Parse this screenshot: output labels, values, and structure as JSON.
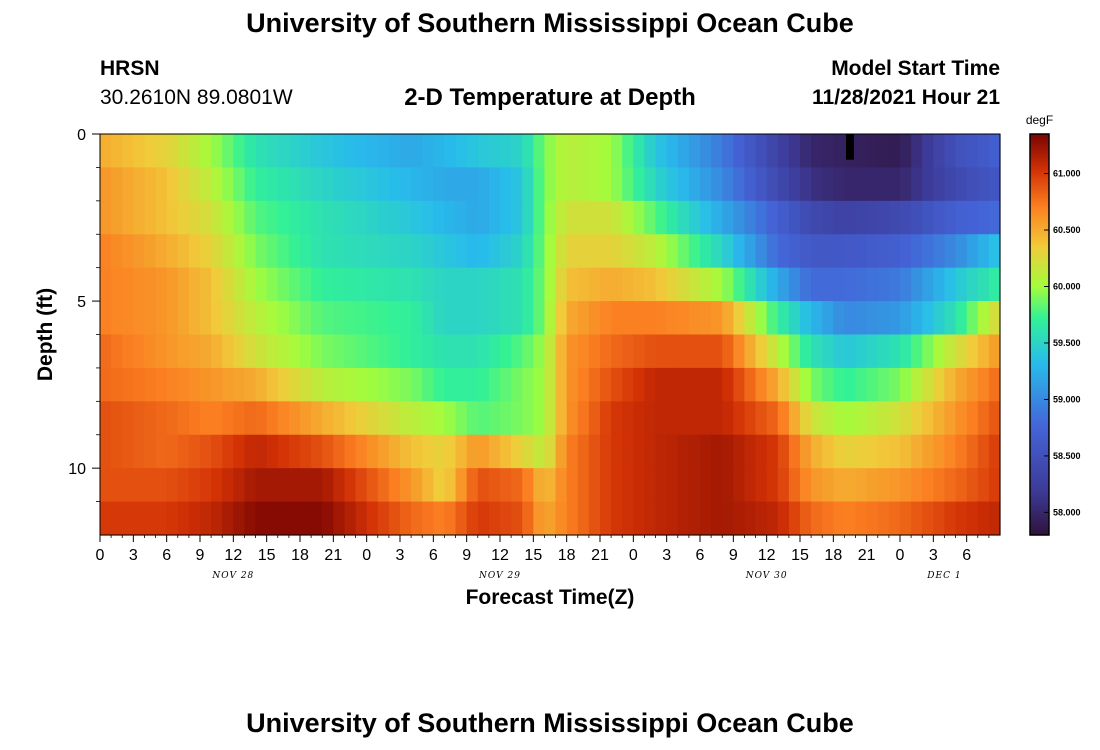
{
  "header": {
    "title": "University of Southern Mississippi Ocean Cube",
    "station": "HRSN",
    "coords": "30.2610N  89.0801W",
    "subtitle": "2-D Temperature at Depth",
    "model_label": "Model Start Time",
    "model_time": "11/28/2021 Hour 21"
  },
  "footer": {
    "title": "University of Southern Mississippi Ocean Cube"
  },
  "chart_data": {
    "type": "heatmap",
    "title": "2-D Temperature at Depth",
    "xlabel": "Forecast Time(Z)",
    "ylabel": "Depth (ft)",
    "x_hours": [
      0,
      81
    ],
    "x_tick_labels": [
      "0",
      "3",
      "6",
      "9",
      "12",
      "15",
      "18",
      "21",
      "0",
      "3",
      "6",
      "9",
      "12",
      "15",
      "18",
      "21",
      "0",
      "3",
      "6",
      "9",
      "12",
      "15",
      "18",
      "21",
      "0",
      "3",
      "6"
    ],
    "date_labels": [
      {
        "label": "NOV 28",
        "hour": 12
      },
      {
        "label": "NOV 29",
        "hour": 36
      },
      {
        "label": "NOV 30",
        "hour": 60
      },
      {
        "label": "DEC 1",
        "hour": 76
      }
    ],
    "y_range": [
      0,
      12
    ],
    "y_tick_labels": [
      "0",
      "5",
      "10"
    ],
    "y_tick_values": [
      0,
      5,
      10
    ],
    "colorbar": {
      "unit": "degF",
      "range": [
        57.8,
        61.35
      ],
      "tick_values": [
        58.0,
        58.5,
        59.0,
        59.5,
        60.0,
        60.5,
        61.0
      ],
      "tick_labels": [
        "58.000",
        "58.500",
        "59.000",
        "59.500",
        "60.000",
        "60.500",
        "61.000"
      ]
    },
    "depth_levels": [
      0.5,
      1.5,
      2.5,
      3.5,
      4.5,
      5.5,
      6.5,
      7.5,
      8.5,
      9.5,
      10.5,
      11.5
    ],
    "key_hours": [
      0,
      6,
      10,
      14,
      20,
      28,
      31,
      34,
      38,
      40,
      42,
      46,
      50,
      56,
      61,
      64,
      67,
      72,
      77,
      81
    ],
    "temperature_profiles": [
      [
        60.5,
        60.3,
        60.0,
        59.6,
        59.4,
        59.2,
        59.3,
        59.4,
        59.5,
        59.9,
        60.1,
        60.0,
        59.4,
        58.9,
        58.3,
        58.0,
        57.95,
        57.9,
        58.5,
        58.7
      ],
      [
        60.6,
        60.4,
        60.1,
        59.7,
        59.5,
        59.3,
        59.2,
        59.2,
        59.4,
        59.9,
        60.1,
        60.0,
        59.5,
        59.0,
        58.4,
        58.1,
        58.0,
        58.0,
        58.4,
        58.6
      ],
      [
        60.6,
        60.4,
        60.2,
        59.8,
        59.6,
        59.4,
        59.3,
        59.2,
        59.4,
        59.9,
        60.2,
        60.2,
        59.8,
        59.2,
        58.7,
        58.4,
        58.3,
        58.4,
        58.7,
        58.8
      ],
      [
        60.7,
        60.5,
        60.3,
        59.9,
        59.6,
        59.5,
        59.4,
        59.3,
        59.5,
        59.9,
        60.3,
        60.3,
        60.1,
        59.5,
        58.8,
        58.6,
        58.6,
        58.7,
        59.0,
        59.4
      ],
      [
        60.7,
        60.6,
        60.4,
        60.0,
        59.7,
        59.6,
        59.5,
        59.5,
        59.6,
        59.9,
        60.4,
        60.5,
        60.4,
        60.0,
        59.2,
        58.8,
        58.8,
        58.9,
        59.4,
        59.7
      ],
      [
        60.7,
        60.6,
        60.4,
        60.1,
        59.8,
        59.7,
        59.5,
        59.5,
        59.6,
        59.9,
        60.5,
        60.7,
        60.7,
        60.6,
        59.7,
        59.3,
        59.0,
        59.1,
        59.6,
        60.3
      ],
      [
        60.8,
        60.6,
        60.5,
        60.2,
        59.9,
        59.7,
        59.6,
        59.6,
        59.8,
        60.0,
        60.6,
        60.8,
        60.9,
        60.9,
        60.1,
        59.6,
        59.4,
        59.6,
        60.2,
        60.6
      ],
      [
        60.8,
        60.7,
        60.6,
        60.5,
        60.1,
        59.9,
        59.7,
        59.7,
        59.9,
        60.0,
        60.6,
        60.9,
        61.1,
        61.1,
        60.5,
        59.9,
        59.7,
        59.9,
        60.5,
        60.8
      ],
      [
        60.9,
        60.8,
        60.7,
        60.8,
        60.5,
        60.1,
        60.0,
        59.8,
        59.9,
        60.0,
        60.6,
        61.0,
        61.1,
        61.1,
        60.8,
        60.2,
        60.0,
        60.2,
        60.6,
        60.9
      ],
      [
        60.9,
        60.8,
        60.9,
        61.1,
        60.9,
        60.4,
        60.3,
        60.6,
        60.3,
        60.1,
        60.7,
        61.0,
        61.1,
        61.2,
        61.0,
        60.5,
        60.3,
        60.4,
        60.7,
        61.0
      ],
      [
        60.9,
        60.9,
        61.0,
        61.2,
        61.2,
        60.6,
        60.3,
        60.9,
        60.8,
        60.4,
        60.7,
        61.0,
        61.1,
        61.2,
        61.0,
        60.6,
        60.5,
        60.6,
        60.8,
        61.0
      ],
      [
        61.0,
        61.0,
        61.1,
        61.3,
        61.3,
        60.8,
        60.7,
        61.0,
        60.9,
        60.5,
        60.7,
        61.0,
        61.1,
        61.2,
        61.1,
        60.8,
        60.7,
        60.8,
        61.0,
        61.1
      ]
    ],
    "marker": {
      "hour": 67.5,
      "depth": 0.5
    }
  }
}
